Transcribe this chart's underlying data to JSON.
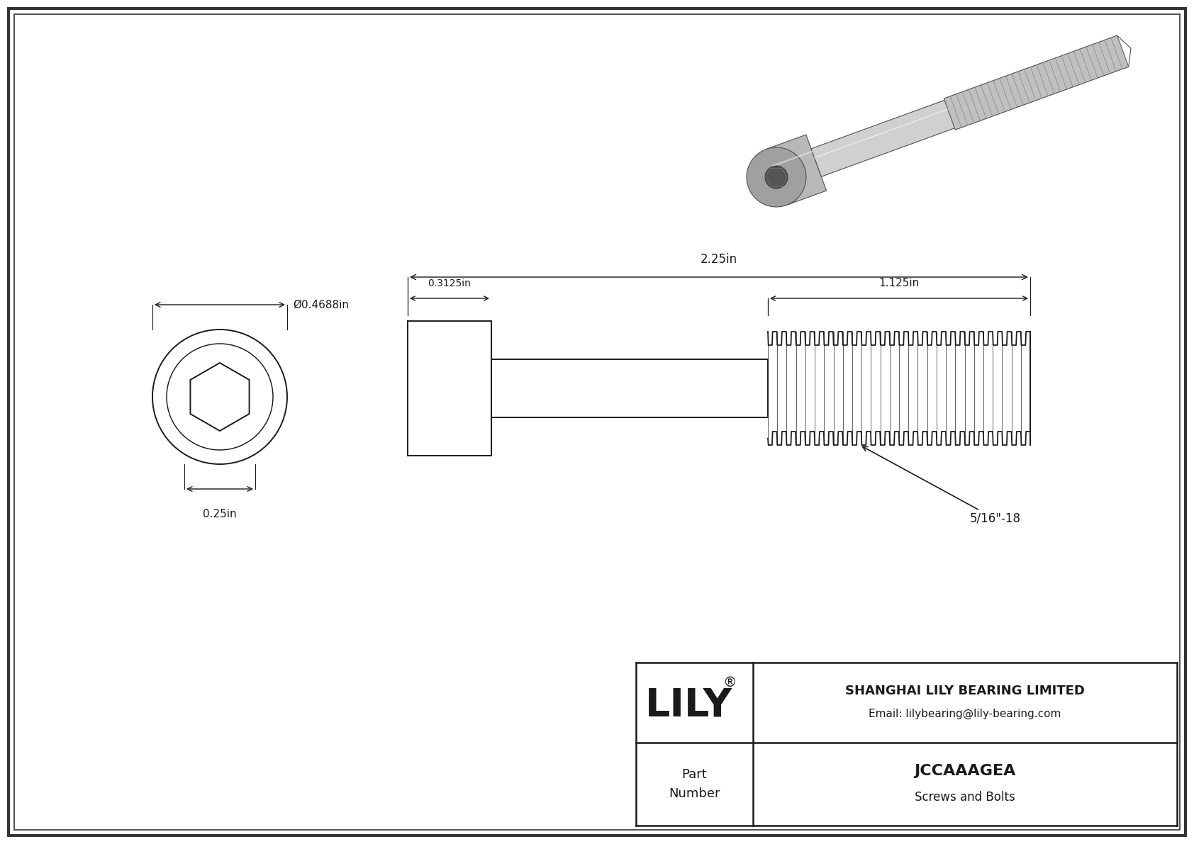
{
  "bg_color": "#ffffff",
  "line_color": "#1a1a1a",
  "border_color": "#444444",
  "title": "JCCAAAGEA",
  "subtitle": "Screws and Bolts",
  "company": "SHANGHAI LILY BEARING LIMITED",
  "email": "Email: lilybearing@lily-bearing.com",
  "part_label": "Part\nNumber",
  "brand": "LILY",
  "reg_sym": "®",
  "dim_diameter": "Ø0.4688in",
  "dim_head_width": "0.25in",
  "dim_total_length": "2.25in",
  "dim_head_length": "0.3125in",
  "dim_thread_length": "1.125in",
  "dim_thread_spec": "5/16\"-18",
  "note_bg": "#f8f8f8"
}
